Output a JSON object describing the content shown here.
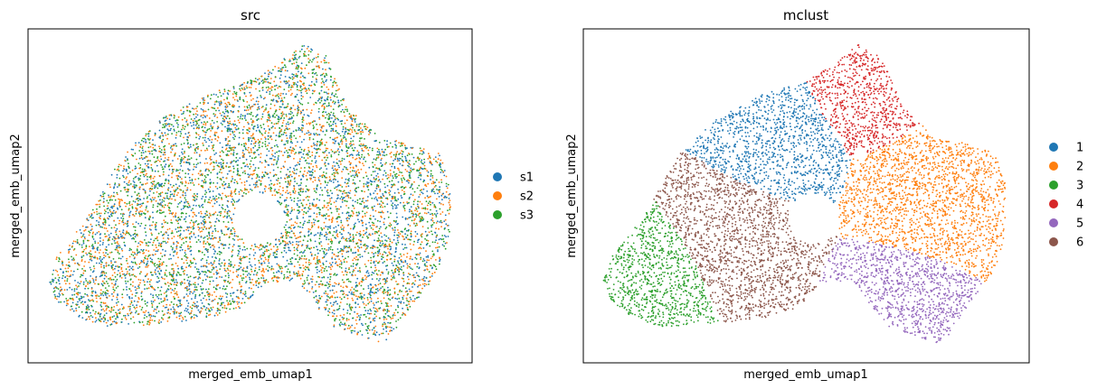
{
  "chart_data": [
    {
      "type": "scatter",
      "title": "src",
      "xlabel": "merged_emb_umap1",
      "ylabel": "merged_emb_umap2",
      "xticks": false,
      "yticks": false,
      "grid": false,
      "legend_position": "right",
      "legend": [
        {
          "label": "s1",
          "color": "#1f77b4"
        },
        {
          "label": "s2",
          "color": "#ff7f0e"
        },
        {
          "label": "s3",
          "color": "#2ca02c"
        }
      ],
      "series": [
        {
          "name": "s1",
          "color": "#1f77b4",
          "points": 3000
        },
        {
          "name": "s2",
          "color": "#ff7f0e",
          "points": 3000
        },
        {
          "name": "s3",
          "color": "#2ca02c",
          "points": 3000
        }
      ]
    },
    {
      "type": "scatter",
      "title": "mclust",
      "xlabel": "merged_emb_umap1",
      "ylabel": "merged_emb_umap2",
      "xticks": false,
      "yticks": false,
      "grid": false,
      "legend_position": "right",
      "legend": [
        {
          "label": "1",
          "color": "#1f77b4"
        },
        {
          "label": "2",
          "color": "#ff7f0e"
        },
        {
          "label": "3",
          "color": "#2ca02c"
        },
        {
          "label": "4",
          "color": "#d62728"
        },
        {
          "label": "5",
          "color": "#9467bd"
        },
        {
          "label": "6",
          "color": "#8c564b"
        }
      ],
      "series": [
        {
          "name": "1",
          "color": "#1f77b4",
          "region": "upper-left"
        },
        {
          "name": "2",
          "color": "#ff7f0e",
          "region": "right"
        },
        {
          "name": "3",
          "color": "#2ca02c",
          "region": "lower-left"
        },
        {
          "name": "4",
          "color": "#d62728",
          "region": "top"
        },
        {
          "name": "5",
          "color": "#9467bd",
          "region": "bottom-right"
        },
        {
          "name": "6",
          "color": "#8c564b",
          "region": "center-left"
        }
      ]
    }
  ]
}
